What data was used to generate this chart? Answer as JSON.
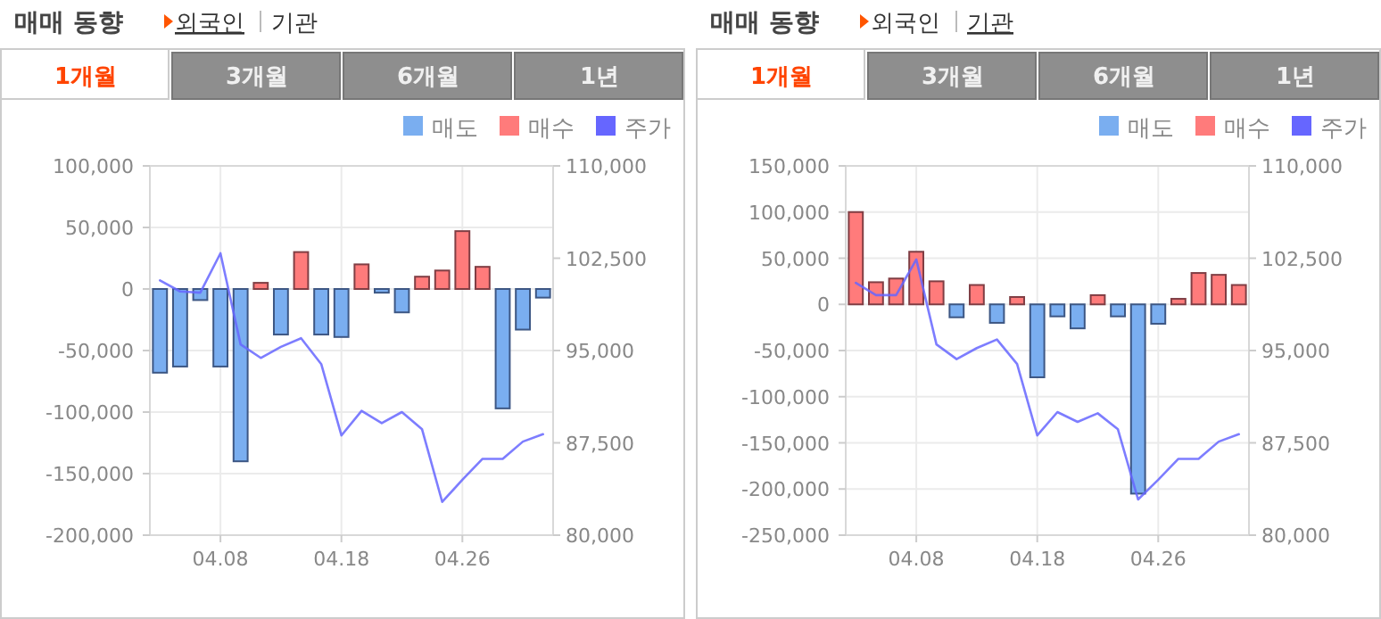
{
  "chart_data": [
    {
      "type": "bar",
      "title": "매매 동향",
      "annotations": [
        "외국인",
        "기관",
        "1개월",
        "3개월",
        "6개월",
        "1년"
      ],
      "categories": [
        null,
        null,
        null,
        "04.08",
        null,
        null,
        null,
        null,
        null,
        "04.18",
        null,
        null,
        null,
        null,
        null,
        "04.26",
        null,
        null,
        null,
        null
      ],
      "series": [
        {
          "name": "매도",
          "color": "#7aaef0",
          "values": [
            -68000,
            -63000,
            -9000,
            -63000,
            -140000,
            null,
            -37000,
            null,
            -37000,
            -39000,
            null,
            -3000,
            -19000,
            null,
            null,
            null,
            null,
            -97000,
            -33000,
            -7000
          ]
        },
        {
          "name": "매수",
          "color": "#ff7b7b",
          "values": [
            null,
            null,
            null,
            null,
            null,
            5000,
            null,
            30000,
            null,
            null,
            20000,
            null,
            null,
            10000,
            15000,
            47000,
            18000,
            null,
            null,
            null
          ]
        },
        {
          "name": "주가",
          "type": "line",
          "axis": "y2",
          "color": "#6666ff",
          "values": [
            100700,
            99800,
            99700,
            102900,
            95500,
            94400,
            95300,
            96000,
            93900,
            88100,
            90100,
            89100,
            90000,
            88600,
            82700,
            84500,
            86200,
            86200,
            87600,
            88200
          ]
        }
      ],
      "ylim": [
        -200000,
        100000
      ],
      "yticks": [
        {
          "value": -200000,
          "label": "-200,000"
        },
        {
          "value": -150000,
          "label": "-150,000"
        },
        {
          "value": -100000,
          "label": "-100,000"
        },
        {
          "value": -50000,
          "label": "-50,000"
        },
        0,
        {
          "value": 50000,
          "label": "50,000"
        },
        {
          "value": 100000,
          "label": "100,000"
        }
      ],
      "y2lim": [
        80000,
        110000
      ],
      "y2ticks": [
        {
          "value": 80000,
          "label": "80,000"
        },
        {
          "value": 87500,
          "label": "87,500"
        },
        {
          "value": 95000,
          "label": "95,000"
        },
        {
          "value": 102500,
          "label": "102,500"
        },
        {
          "value": 110000,
          "label": "110,000"
        }
      ],
      "grid": true,
      "legend": "top right"
    },
    {
      "type": "bar",
      "title": "매매 동향",
      "annotations": [
        "외국인",
        "기관",
        "1개월",
        "3개월",
        "6개월",
        "1년"
      ],
      "categories": [
        null,
        null,
        null,
        "04.08",
        null,
        null,
        null,
        null,
        null,
        "04.18",
        null,
        null,
        null,
        null,
        null,
        "04.26",
        null,
        null,
        null,
        null
      ],
      "series": [
        {
          "name": "매도",
          "color": "#7aaef0",
          "values": [
            null,
            null,
            null,
            null,
            null,
            -14000,
            null,
            -20000,
            null,
            -79000,
            -13000,
            -26000,
            null,
            -13000,
            -205000,
            -21000,
            null,
            null,
            null,
            null
          ]
        },
        {
          "name": "매수",
          "color": "#ff7b7b",
          "values": [
            100000,
            24000,
            28000,
            57000,
            25000,
            null,
            21000,
            null,
            8000,
            null,
            null,
            null,
            10000,
            null,
            null,
            null,
            6000,
            34000,
            32000,
            21000
          ]
        },
        {
          "name": "주가",
          "type": "line",
          "axis": "y2",
          "color": "#6666ff",
          "values": [
            100500,
            99500,
            99500,
            102400,
            95500,
            94300,
            95200,
            95900,
            93900,
            88100,
            90000,
            89200,
            89900,
            88600,
            82900,
            84500,
            86200,
            86200,
            87600,
            88200
          ]
        }
      ],
      "ylim": [
        -250000,
        150000
      ],
      "yticks": [
        {
          "value": -250000,
          "label": "-250,000"
        },
        {
          "value": -200000,
          "label": "-200,000"
        },
        {
          "value": -150000,
          "label": "-150,000"
        },
        {
          "value": -100000,
          "label": "-100,000"
        },
        {
          "value": -50000,
          "label": "-50,000"
        },
        0,
        {
          "value": 50000,
          "label": "50,000"
        },
        {
          "value": 100000,
          "label": "100,000"
        },
        {
          "value": 150000,
          "label": "150,000"
        }
      ],
      "y2lim": [
        80000,
        110000
      ],
      "y2ticks": [
        {
          "value": 80000,
          "label": "80,000"
        },
        {
          "value": 87500,
          "label": "87,500"
        },
        {
          "value": 95000,
          "label": "95,000"
        },
        {
          "value": 102500,
          "label": "102,500"
        },
        {
          "value": 110000,
          "label": "110,000"
        }
      ],
      "grid": true,
      "legend": "top right"
    }
  ]
}
